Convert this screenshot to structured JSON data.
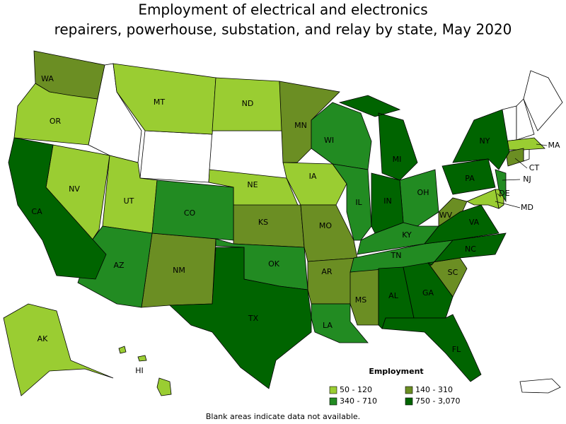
{
  "title_lines": [
    "Employment of electrical and electronics",
    "repairers, powerhouse, substation, and relay by state, May 2020"
  ],
  "legend": {
    "title": "Employment",
    "bins": [
      {
        "label": "50 - 120",
        "color": "#9acd32",
        "states": [
          "OR",
          "NV",
          "MT",
          "ND",
          "UT",
          "NE",
          "IA",
          "AK",
          "HI",
          "MA",
          "DE",
          "MD"
        ]
      },
      {
        "label": "140 - 310",
        "color": "#6b8e23",
        "states": [
          "WA",
          "MN",
          "KS",
          "NM",
          "MO",
          "AR",
          "MS",
          "WV",
          "SC",
          "CT"
        ]
      },
      {
        "label": "340 - 710",
        "color": "#228b22",
        "states": [
          "WI",
          "IL",
          "CO",
          "AZ",
          "OK",
          "OH",
          "KY",
          "TN",
          "LA",
          "NJ"
        ]
      },
      {
        "label": "750 - 3,070",
        "color": "#006400",
        "states": [
          "CA",
          "TX",
          "MI",
          "IN",
          "NY",
          "PA",
          "VA",
          "NC",
          "AL",
          "GA",
          "FL"
        ]
      }
    ]
  },
  "note": "Blank areas indicate data not available."
}
